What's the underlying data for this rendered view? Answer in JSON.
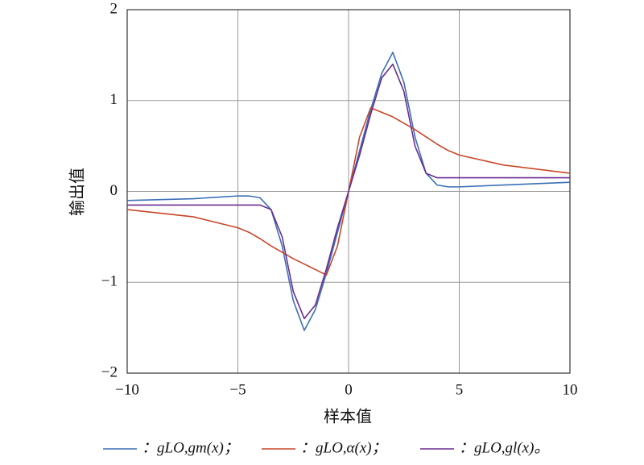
{
  "chart_data": {
    "type": "line",
    "xlabel": "样本值",
    "ylabel": "输出值",
    "xlim": [
      -10,
      10
    ],
    "ylim": [
      -2,
      2
    ],
    "xticks": [
      {
        "value": -10,
        "label": "−10"
      },
      {
        "value": -5,
        "label": "−5"
      },
      0,
      5,
      10
    ],
    "yticks": [
      {
        "value": -2,
        "label": "−2"
      },
      {
        "value": -1,
        "label": "−1"
      },
      0,
      1,
      2
    ],
    "grid": true,
    "legend": "bottom",
    "x": [
      -10,
      -7,
      -5,
      -4.5,
      -4,
      -3.5,
      -3,
      -2.5,
      -2,
      -1.5,
      -1,
      -0.5,
      0,
      0.5,
      1,
      1.5,
      2,
      2.5,
      3,
      3.5,
      4,
      4.5,
      5,
      7,
      10
    ],
    "series": [
      {
        "name": "：gLO,gm(x)；",
        "color": "#3a6fb7",
        "values": [
          -0.1,
          -0.08,
          -0.05,
          -0.05,
          -0.07,
          -0.2,
          -0.6,
          -1.2,
          -1.53,
          -1.3,
          -0.9,
          -0.45,
          0,
          0.45,
          0.9,
          1.3,
          1.53,
          1.2,
          0.6,
          0.2,
          0.07,
          0.05,
          0.05,
          0.07,
          0.1
        ]
      },
      {
        "name": "：gLO,α(x)；",
        "color": "#c8472a",
        "values": [
          -0.2,
          -0.28,
          -0.4,
          -0.45,
          -0.52,
          -0.6,
          -0.67,
          -0.74,
          -0.8,
          -0.86,
          -0.92,
          -0.6,
          0,
          0.6,
          0.92,
          0.87,
          0.82,
          0.75,
          0.68,
          0.6,
          0.52,
          0.45,
          0.4,
          0.29,
          0.2
        ]
      },
      {
        "name": "：gLO,gl(x)。",
        "color": "#6a2c91",
        "values": [
          -0.15,
          -0.15,
          -0.15,
          -0.15,
          -0.15,
          -0.2,
          -0.5,
          -1.1,
          -1.4,
          -1.25,
          -0.85,
          -0.4,
          0,
          0.4,
          0.85,
          1.25,
          1.4,
          1.1,
          0.5,
          0.2,
          0.15,
          0.15,
          0.15,
          0.15,
          0.15
        ]
      }
    ]
  }
}
